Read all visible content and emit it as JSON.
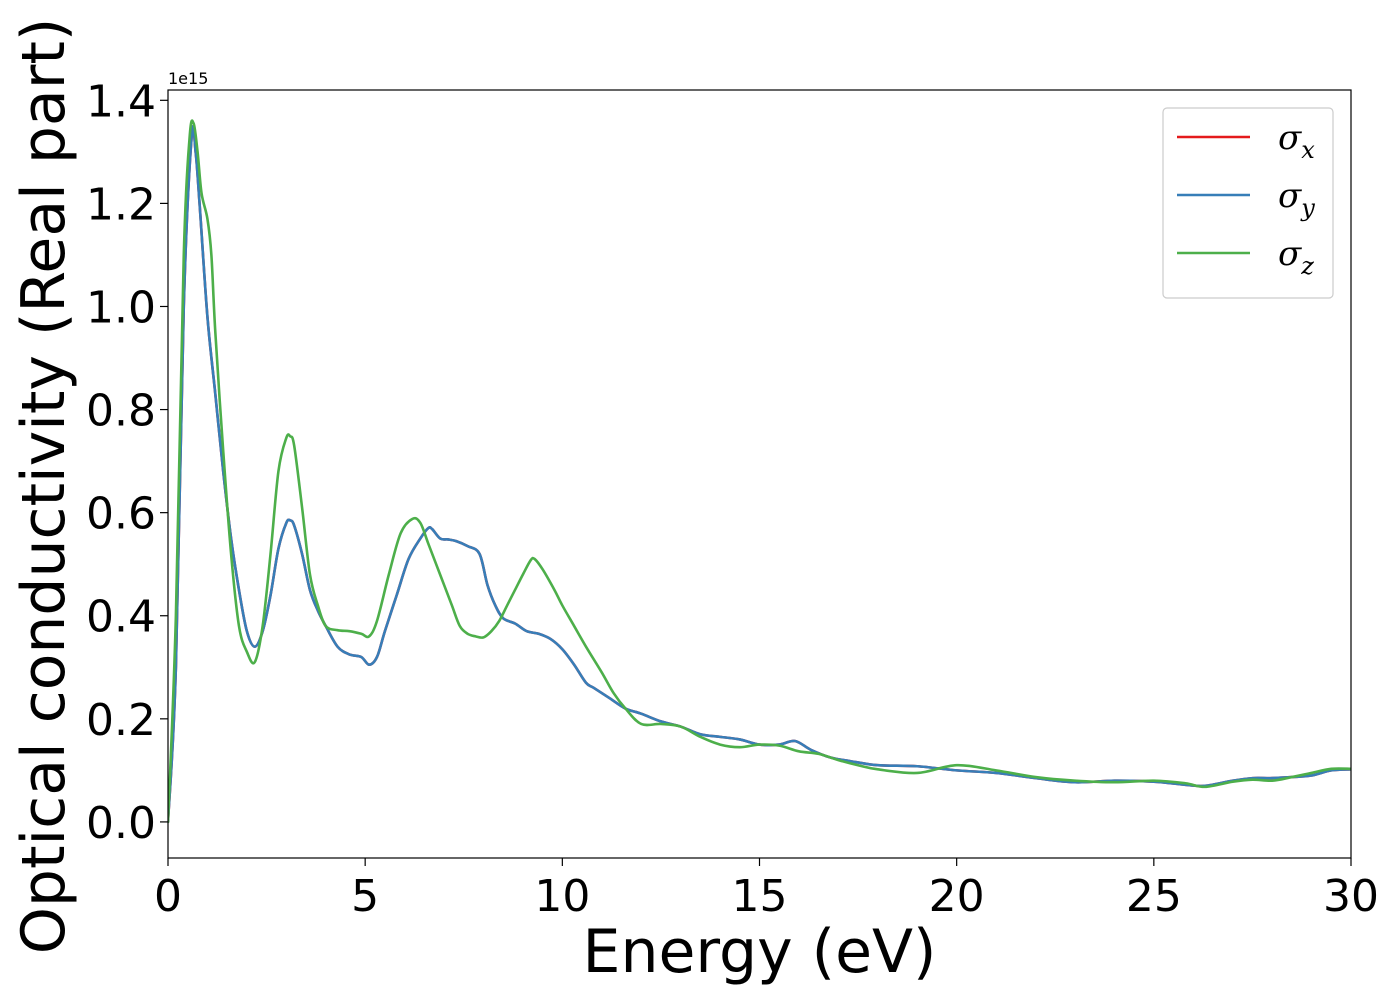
{
  "chart_data": {
    "type": "line",
    "xlabel": "Energy (eV)",
    "ylabel": "Optical conductivity (Real part)",
    "y_offset_label": "1e15",
    "xlim": [
      0,
      30
    ],
    "ylim": [
      -0.07,
      1.42
    ],
    "y_scale_factor": 1000000000000000.0,
    "xticks": [
      0,
      5,
      10,
      15,
      20,
      25,
      30
    ],
    "xtick_labels": [
      "0",
      "5",
      "10",
      "15",
      "20",
      "25",
      "30"
    ],
    "yticks": [
      0.0,
      0.2,
      0.4,
      0.6,
      0.8,
      1.0,
      1.2,
      1.4
    ],
    "ytick_labels": [
      "0.0",
      "0.2",
      "0.4",
      "0.6",
      "0.8",
      "1.0",
      "1.2",
      "1.4"
    ],
    "grid": false,
    "legend_position": "top-right",
    "series": [
      {
        "name": "σx",
        "symbol": "σ",
        "subscript": "x",
        "color": "#e41a1c",
        "x": [
          0,
          0.2,
          0.4,
          0.6,
          0.7,
          0.8,
          1.0,
          1.2,
          1.4,
          1.6,
          1.8,
          2.0,
          2.2,
          2.4,
          2.6,
          2.8,
          3.0,
          3.1,
          3.2,
          3.4,
          3.6,
          3.8,
          4.0,
          4.3,
          4.6,
          4.9,
          5.1,
          5.3,
          5.5,
          5.8,
          6.1,
          6.4,
          6.6,
          6.7,
          6.9,
          7.1,
          7.3,
          7.6,
          7.9,
          8.1,
          8.3,
          8.5,
          8.8,
          9.1,
          9.4,
          9.7,
          10.0,
          10.3,
          10.6,
          10.8,
          11.2,
          11.6,
          12.0,
          12.5,
          13.0,
          13.5,
          14.0,
          14.5,
          15.0,
          15.5,
          15.9,
          16.3,
          16.8,
          17.3,
          18.0,
          19.0,
          20.0,
          21.0,
          22.0,
          23.0,
          24.0,
          25.0,
          25.8,
          26.3,
          27.0,
          27.5,
          28.0,
          28.5,
          29.0,
          29.5,
          30.0
        ],
        "y": [
          0.0,
          0.3,
          1.0,
          1.33,
          1.3,
          1.2,
          0.98,
          0.83,
          0.68,
          0.55,
          0.45,
          0.37,
          0.34,
          0.37,
          0.44,
          0.53,
          0.58,
          0.585,
          0.575,
          0.52,
          0.45,
          0.41,
          0.38,
          0.34,
          0.325,
          0.32,
          0.305,
          0.32,
          0.37,
          0.44,
          0.51,
          0.55,
          0.57,
          0.568,
          0.55,
          0.548,
          0.545,
          0.535,
          0.52,
          0.46,
          0.42,
          0.395,
          0.385,
          0.37,
          0.365,
          0.355,
          0.335,
          0.305,
          0.27,
          0.26,
          0.24,
          0.22,
          0.21,
          0.195,
          0.185,
          0.17,
          0.165,
          0.16,
          0.15,
          0.15,
          0.157,
          0.14,
          0.125,
          0.118,
          0.11,
          0.108,
          0.1,
          0.095,
          0.085,
          0.077,
          0.08,
          0.078,
          0.072,
          0.07,
          0.08,
          0.085,
          0.085,
          0.087,
          0.09,
          0.1,
          0.102
        ]
      },
      {
        "name": "σy",
        "symbol": "σ",
        "subscript": "y",
        "color": "#377eb8",
        "x": [
          0,
          0.2,
          0.4,
          0.6,
          0.7,
          0.8,
          1.0,
          1.2,
          1.4,
          1.6,
          1.8,
          2.0,
          2.2,
          2.4,
          2.6,
          2.8,
          3.0,
          3.1,
          3.2,
          3.4,
          3.6,
          3.8,
          4.0,
          4.3,
          4.6,
          4.9,
          5.1,
          5.3,
          5.5,
          5.8,
          6.1,
          6.4,
          6.6,
          6.7,
          6.9,
          7.1,
          7.3,
          7.6,
          7.9,
          8.1,
          8.3,
          8.5,
          8.8,
          9.1,
          9.4,
          9.7,
          10.0,
          10.3,
          10.6,
          10.8,
          11.2,
          11.6,
          12.0,
          12.5,
          13.0,
          13.5,
          14.0,
          14.5,
          15.0,
          15.5,
          15.9,
          16.3,
          16.8,
          17.3,
          18.0,
          19.0,
          20.0,
          21.0,
          22.0,
          23.0,
          24.0,
          25.0,
          25.8,
          26.3,
          27.0,
          27.5,
          28.0,
          28.5,
          29.0,
          29.5,
          30.0
        ],
        "y": [
          0.0,
          0.3,
          1.0,
          1.33,
          1.3,
          1.2,
          0.98,
          0.83,
          0.68,
          0.55,
          0.45,
          0.37,
          0.34,
          0.37,
          0.44,
          0.53,
          0.58,
          0.585,
          0.575,
          0.52,
          0.45,
          0.41,
          0.38,
          0.34,
          0.325,
          0.32,
          0.305,
          0.32,
          0.37,
          0.44,
          0.51,
          0.55,
          0.57,
          0.568,
          0.55,
          0.548,
          0.545,
          0.535,
          0.52,
          0.46,
          0.42,
          0.395,
          0.385,
          0.37,
          0.365,
          0.355,
          0.335,
          0.305,
          0.27,
          0.26,
          0.24,
          0.22,
          0.21,
          0.195,
          0.185,
          0.17,
          0.165,
          0.16,
          0.15,
          0.15,
          0.157,
          0.14,
          0.125,
          0.118,
          0.11,
          0.108,
          0.1,
          0.095,
          0.085,
          0.077,
          0.08,
          0.078,
          0.072,
          0.07,
          0.08,
          0.085,
          0.085,
          0.087,
          0.09,
          0.1,
          0.102
        ]
      },
      {
        "name": "σz",
        "symbol": "σ",
        "subscript": "z",
        "color": "#4daf4a",
        "x": [
          0,
          0.2,
          0.4,
          0.55,
          0.65,
          0.75,
          0.85,
          1.0,
          1.1,
          1.2,
          1.4,
          1.6,
          1.8,
          2.0,
          2.2,
          2.4,
          2.6,
          2.8,
          3.0,
          3.1,
          3.2,
          3.4,
          3.6,
          3.8,
          4.0,
          4.3,
          4.6,
          4.9,
          5.1,
          5.3,
          5.6,
          5.9,
          6.2,
          6.4,
          6.6,
          6.8,
          7.0,
          7.2,
          7.4,
          7.6,
          7.8,
          8.0,
          8.2,
          8.4,
          8.6,
          8.8,
          9.0,
          9.2,
          9.3,
          9.5,
          9.8,
          10.0,
          10.3,
          10.6,
          11.0,
          11.3,
          11.6,
          12.0,
          12.5,
          13.0,
          13.5,
          14.0,
          14.5,
          15.0,
          15.5,
          16.0,
          16.5,
          17.0,
          17.5,
          18.0,
          19.0,
          20.0,
          21.0,
          22.0,
          23.0,
          24.0,
          25.0,
          25.8,
          26.3,
          27.0,
          27.5,
          28.0,
          28.5,
          29.0,
          29.5,
          30.0
        ],
        "y": [
          0.0,
          0.4,
          1.1,
          1.33,
          1.355,
          1.3,
          1.22,
          1.17,
          1.1,
          0.95,
          0.72,
          0.52,
          0.38,
          0.33,
          0.31,
          0.38,
          0.52,
          0.68,
          0.745,
          0.748,
          0.73,
          0.61,
          0.48,
          0.42,
          0.38,
          0.372,
          0.37,
          0.365,
          0.36,
          0.39,
          0.48,
          0.56,
          0.588,
          0.58,
          0.54,
          0.5,
          0.46,
          0.42,
          0.38,
          0.365,
          0.36,
          0.358,
          0.37,
          0.39,
          0.42,
          0.45,
          0.48,
          0.508,
          0.51,
          0.49,
          0.45,
          0.42,
          0.38,
          0.34,
          0.29,
          0.25,
          0.22,
          0.19,
          0.19,
          0.185,
          0.165,
          0.15,
          0.145,
          0.15,
          0.148,
          0.137,
          0.132,
          0.12,
          0.11,
          0.102,
          0.095,
          0.11,
          0.1,
          0.087,
          0.08,
          0.077,
          0.08,
          0.075,
          0.068,
          0.078,
          0.082,
          0.08,
          0.087,
          0.095,
          0.103,
          0.103
        ]
      }
    ]
  }
}
